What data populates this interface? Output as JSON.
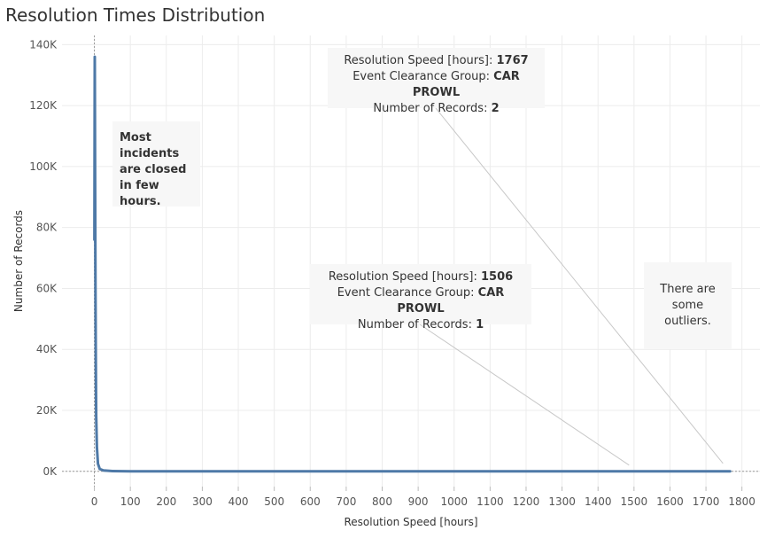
{
  "title": "Resolution Times Distribution",
  "chart_data": {
    "type": "line",
    "xlabel": "Resolution Speed [hours]",
    "ylabel": "Number of Records",
    "xlim": [
      -90,
      1850
    ],
    "ylim": [
      -5000,
      143000
    ],
    "x_ticks": [
      0,
      100,
      200,
      300,
      400,
      500,
      600,
      700,
      800,
      900,
      1000,
      1100,
      1200,
      1300,
      1400,
      1500,
      1600,
      1700,
      1800
    ],
    "y_ticks": [
      {
        "value": 0,
        "label": "0K"
      },
      {
        "value": 20000,
        "label": "20K"
      },
      {
        "value": 40000,
        "label": "40K"
      },
      {
        "value": 60000,
        "label": "60K"
      },
      {
        "value": 80000,
        "label": "80K"
      },
      {
        "value": 100000,
        "label": "100K"
      },
      {
        "value": 120000,
        "label": "120K"
      },
      {
        "value": 140000,
        "label": "140K"
      }
    ],
    "grid": true,
    "line_color": "#4e79a7",
    "x": [
      0,
      1,
      2,
      3,
      4,
      5,
      7,
      10,
      15,
      25,
      50,
      100,
      200,
      400,
      800,
      1200,
      1506,
      1600,
      1767
    ],
    "values": [
      76000,
      136000,
      95000,
      60000,
      35000,
      18000,
      8000,
      2500,
      800,
      300,
      100,
      30,
      10,
      5,
      2,
      1,
      1,
      1,
      2
    ]
  },
  "annotations": {
    "left_note": "Most incidents are closed in few hours.",
    "right_note": "There are some outliers.",
    "tooltip_1": {
      "speed_label": "Resolution Speed [hours]:",
      "speed_value": "1767",
      "group_label": "Event Clearance Group:",
      "group_value": "CAR PROWL",
      "records_label": "Number of Records:",
      "records_value": "2"
    },
    "tooltip_2": {
      "speed_label": "Resolution Speed [hours]:",
      "speed_value": "1506",
      "group_label": "Event Clearance Group:",
      "group_value": "CAR PROWL",
      "records_label": "Number of Records:",
      "records_value": "1"
    }
  }
}
